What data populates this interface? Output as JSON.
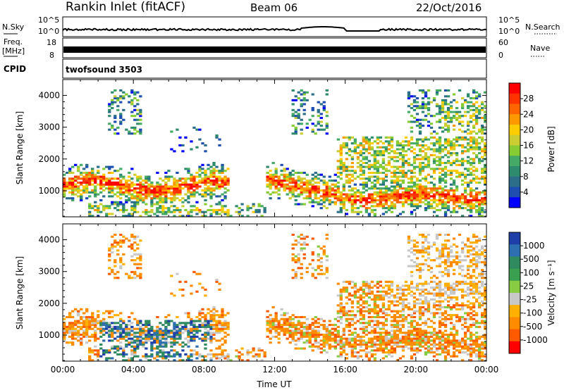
{
  "header": {
    "station": "Rankin Inlet (fitACF)",
    "beam": "Beam 06",
    "date": "22/Oct/2016"
  },
  "info_panels": {
    "nsky": {
      "label": "N.Sky",
      "ticks": [
        "10^5",
        "10^0"
      ]
    },
    "nsearch": {
      "label": "N.Search",
      "ticks": [
        "10^5",
        "10^0"
      ]
    },
    "freq": {
      "label_line1": "Freq.",
      "label_line2": "[MHz]",
      "ticks": [
        "18",
        "8"
      ]
    },
    "nave": {
      "label": "Nave",
      "ticks": [
        "60",
        "0"
      ]
    },
    "cpid": {
      "label": "CPID",
      "value": "twofsound 3503"
    }
  },
  "colorbars": {
    "power": {
      "label": "Power [dB]",
      "ticks": [
        "28",
        "24",
        "20",
        "16",
        "12",
        "8",
        "4"
      ],
      "colors": [
        "#ff0000",
        "#ff3300",
        "#ff6600",
        "#ff9900",
        "#ffcc00",
        "#cccc33",
        "#88cc33",
        "#44aa66",
        "#2e8b6e",
        "#2c6e8a",
        "#1e4fb0",
        "#0000ff"
      ]
    },
    "velocity": {
      "label": "Velocity [m s⁻¹]",
      "ticks": [
        "1000",
        "500",
        "100",
        "25",
        "-25",
        "-100",
        "-500",
        "-1000"
      ],
      "colors": [
        "#1f3fa8",
        "#2d6fb0",
        "#2f8a60",
        "#3aa050",
        "#88cc44",
        "#c8c8c8",
        "#ffb000",
        "#ff8c00",
        "#ff5a00",
        "#ff0000"
      ]
    }
  },
  "chart_data": [
    {
      "type": "heatmap",
      "title": "Power",
      "xlabel": "",
      "ylabel": "Slant Range [km]",
      "xlim": [
        "00:00",
        "00:00"
      ],
      "ylim": [
        180,
        4500
      ],
      "yticks": [
        "1000",
        "2000",
        "3000",
        "4000"
      ],
      "colorbar_label": "Power [dB]",
      "value_range_db": [
        3,
        30
      ]
    },
    {
      "type": "heatmap",
      "title": "Velocity",
      "xlabel": "Time UT",
      "ylabel": "Slant Range [km]",
      "xticks": [
        "00:00",
        "04:00",
        "08:00",
        "12:00",
        "16:00",
        "20:00",
        "00:00"
      ],
      "yticks": [
        "1000",
        "2000",
        "3000",
        "4000"
      ],
      "ylim": [
        180,
        4500
      ],
      "colorbar_label": "Velocity [m s⁻¹]",
      "value_range": [
        -1000,
        1000
      ]
    }
  ]
}
